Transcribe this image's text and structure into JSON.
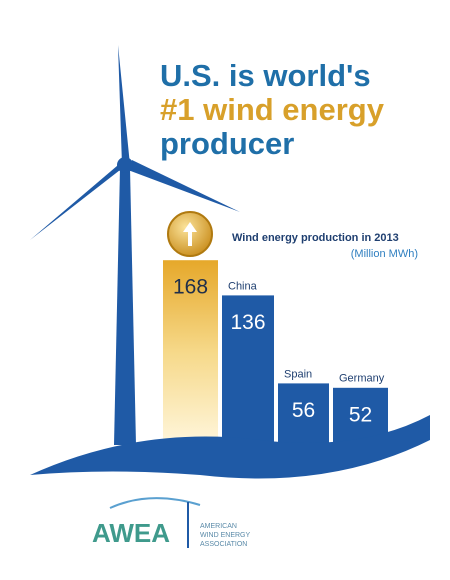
{
  "chart_data": {
    "type": "bar",
    "title": [
      "U.S. is world's",
      "#1 wind energy",
      "producer"
    ],
    "subtitle": "Wind energy production in 2013",
    "unit": "(Million MWh)",
    "categories": [
      null,
      "China",
      "Spain",
      "Germany"
    ],
    "values": [
      168,
      136,
      56,
      52
    ],
    "color": "#1f5aa6",
    "highlight_color": "#e6b038"
  },
  "logo": {
    "name": "AWEA",
    "lines": [
      "AMERICAN",
      "WIND ENERGY",
      "ASSOCIATION"
    ]
  }
}
